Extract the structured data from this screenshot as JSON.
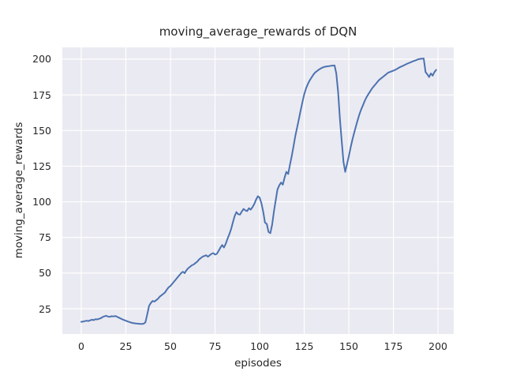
{
  "figure": {
    "background": "#ffffff",
    "plot_background": "#eaeaf2",
    "grid_color": "#ffffff",
    "text_color": "#262626",
    "line_color": "#4c72b0"
  },
  "chart_data": {
    "type": "line",
    "title": "moving_average_rewards of DQN",
    "xlabel": "episodes",
    "ylabel": "moving_average_rewards",
    "xlim": [
      -10.6,
      208.8
    ],
    "ylim": [
      7.3,
      208.3
    ],
    "xticks": [
      0,
      25,
      50,
      75,
      100,
      125,
      150,
      175,
      200
    ],
    "yticks": [
      25,
      50,
      75,
      100,
      125,
      150,
      175,
      200
    ],
    "grid": true,
    "legend_position": "none",
    "series": [
      {
        "name": "moving_average_rewards",
        "color": "#4c72b0",
        "x0": 0,
        "dx": 1,
        "y": [
          15.8,
          16.0,
          16.3,
          16.6,
          16.4,
          16.9,
          17.3,
          17.0,
          17.7,
          17.5,
          18.0,
          18.4,
          19.2,
          19.7,
          20.1,
          19.5,
          19.3,
          19.8,
          19.6,
          19.9,
          19.4,
          18.8,
          18.2,
          17.6,
          17.1,
          16.6,
          16.1,
          15.7,
          15.3,
          15.0,
          14.8,
          14.6,
          14.5,
          14.4,
          14.4,
          14.5,
          15.5,
          21.0,
          27.0,
          29.0,
          30.5,
          30.0,
          31.0,
          32.0,
          33.5,
          34.5,
          35.5,
          36.5,
          38.5,
          40.0,
          41.0,
          42.5,
          44.0,
          45.5,
          47.0,
          48.5,
          50.0,
          51.0,
          50.0,
          52.0,
          53.5,
          54.5,
          55.5,
          56.0,
          57.0,
          58.0,
          59.5,
          60.5,
          61.5,
          62.0,
          62.5,
          61.5,
          62.5,
          63.5,
          64.0,
          63.0,
          63.5,
          65.5,
          67.9,
          69.7,
          68.0,
          70.6,
          74.0,
          77.2,
          80.9,
          85.5,
          90.0,
          92.8,
          91.3,
          91.0,
          93.2,
          95.0,
          94.0,
          93.5,
          95.5,
          94.5,
          96.2,
          98.5,
          101.5,
          103.9,
          103.0,
          99.0,
          93.0,
          85.5,
          84.5,
          78.9,
          78.0,
          84.0,
          93.0,
          101.0,
          108.5,
          111.5,
          113.5,
          112.0,
          117.0,
          121.0,
          119.5,
          126.0,
          132.0,
          139.0,
          146.0,
          152.0,
          158.0,
          164.0,
          170.0,
          175.5,
          179.5,
          182.5,
          185.0,
          187.0,
          189.0,
          190.5,
          191.5,
          192.5,
          193.3,
          194.0,
          194.5,
          194.8,
          195.0,
          195.2,
          195.4,
          195.5,
          195.6,
          190.0,
          177.0,
          158.0,
          143.0,
          128.0,
          121.0,
          126.5,
          132.0,
          138.0,
          143.5,
          148.5,
          153.0,
          157.5,
          161.5,
          165.0,
          168.0,
          171.0,
          173.5,
          175.5,
          177.5,
          179.5,
          181.0,
          182.5,
          184.0,
          185.5,
          186.5,
          187.5,
          188.5,
          189.5,
          190.5,
          191.0,
          191.5,
          192.0,
          192.5,
          193.2,
          194.0,
          194.6,
          195.2,
          195.8,
          196.4,
          197.0,
          197.5,
          198.0,
          198.6,
          199.0,
          199.5,
          200.0,
          200.2,
          200.4,
          200.5,
          191.0,
          189.5,
          187.5,
          190.0,
          188.5,
          191.0,
          192.5
        ]
      }
    ]
  }
}
